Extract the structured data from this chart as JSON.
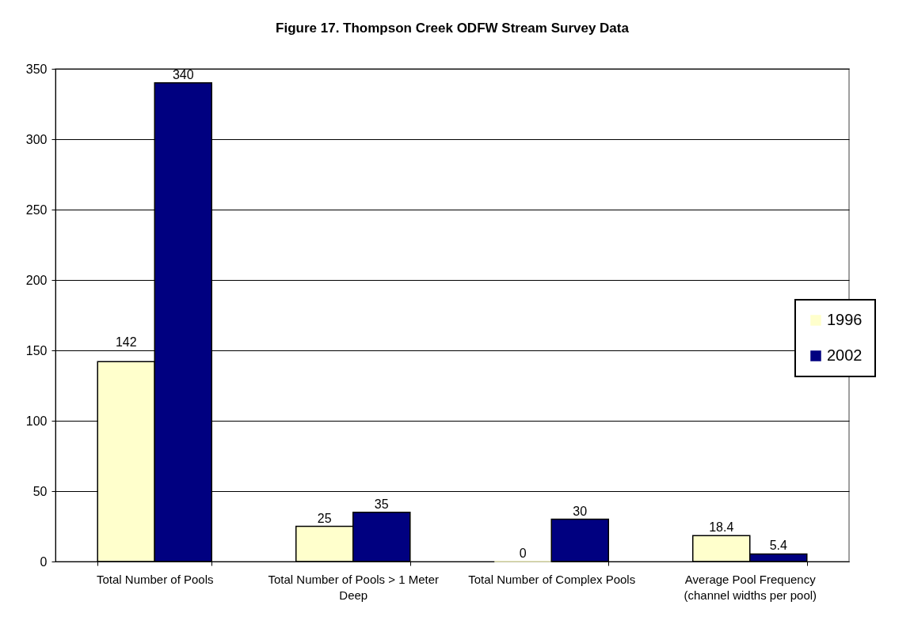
{
  "chart_data": {
    "type": "bar",
    "title": "Figure 17.  Thompson Creek ODFW Stream Survey Data",
    "categories": [
      "Total Number of Pools",
      "Total Number of Pools > 1 Meter Deep",
      "Total Number of Complex Pools",
      "Average Pool Frequency (channel widths per pool)"
    ],
    "series": [
      {
        "name": "1996",
        "color": "#ffffcc",
        "values": [
          142,
          25,
          0,
          18.4
        ]
      },
      {
        "name": "2002",
        "color": "#000080",
        "values": [
          340,
          35,
          30,
          5.4
        ]
      }
    ],
    "ylim": [
      0,
      350
    ],
    "yticks": [
      0,
      50,
      100,
      150,
      200,
      250,
      300,
      350
    ],
    "grid": "y",
    "legend": "right",
    "data_labels": true
  }
}
